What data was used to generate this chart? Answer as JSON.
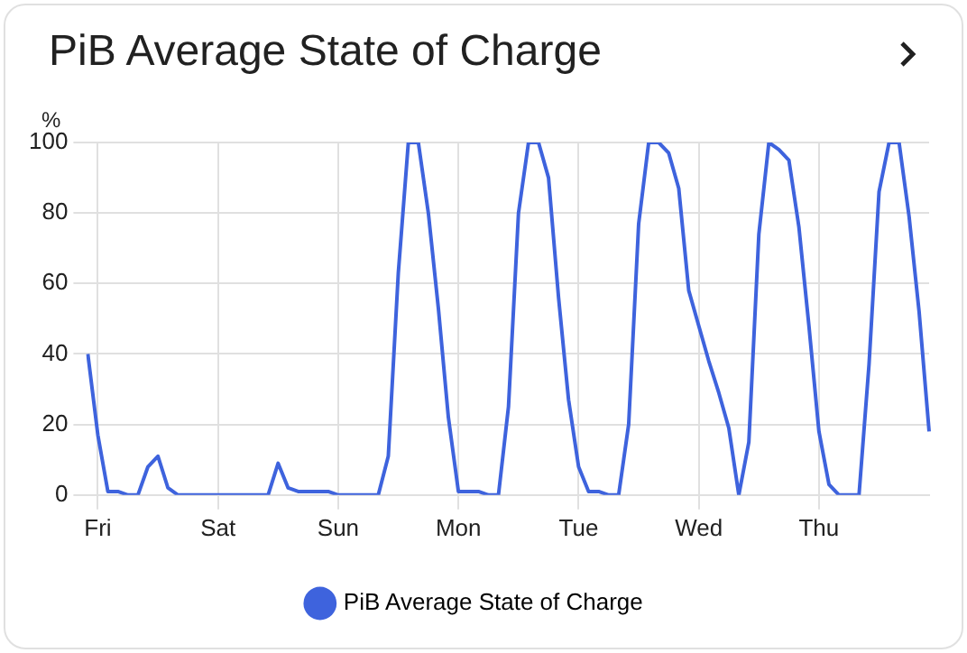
{
  "chart_data": {
    "type": "line",
    "title": "PiB Average State of Charge",
    "ylabel": "%",
    "categories": [
      null,
      "Fri",
      null,
      null,
      null,
      null,
      null,
      null,
      null,
      null,
      null,
      null,
      null,
      "Sat",
      null,
      null,
      null,
      null,
      null,
      null,
      null,
      null,
      null,
      null,
      null,
      "Sun",
      null,
      null,
      null,
      null,
      null,
      null,
      null,
      null,
      null,
      null,
      null,
      "Mon",
      null,
      null,
      null,
      null,
      null,
      null,
      null,
      null,
      null,
      null,
      null,
      "Tue",
      null,
      null,
      null,
      null,
      null,
      null,
      null,
      null,
      null,
      null,
      null,
      "Wed",
      null,
      null,
      null,
      null,
      null,
      null,
      null,
      null,
      null,
      null,
      null,
      "Thu",
      null,
      null,
      null,
      null,
      null,
      null,
      null,
      null,
      null,
      null,
      null
    ],
    "ylim": [
      0,
      100
    ],
    "yticks": [
      0,
      20,
      40,
      60,
      80,
      100
    ],
    "grid": true,
    "legend": "bottom",
    "marker": "none",
    "line_style": "solid",
    "series": [
      {
        "name": "PiB Average State of Charge",
        "color": "#3e63dd",
        "values": [
          40,
          17,
          1,
          1,
          0,
          0,
          8,
          11,
          2,
          0,
          0,
          0,
          0,
          0,
          0,
          0,
          0,
          0,
          0,
          9,
          2,
          1,
          1,
          1,
          1,
          0,
          0,
          0,
          0,
          0,
          11,
          63,
          100,
          100,
          80,
          53,
          22,
          1,
          1,
          1,
          0,
          0,
          25,
          80,
          100,
          100,
          90,
          56,
          27,
          8,
          1,
          1,
          0,
          0,
          20,
          77,
          100,
          100,
          97,
          87,
          58,
          48,
          38,
          29,
          19,
          0,
          15,
          74,
          100,
          98,
          95,
          76,
          48,
          18,
          3,
          0,
          0,
          0,
          37,
          86,
          100,
          100,
          79,
          52,
          18
        ]
      }
    ]
  }
}
